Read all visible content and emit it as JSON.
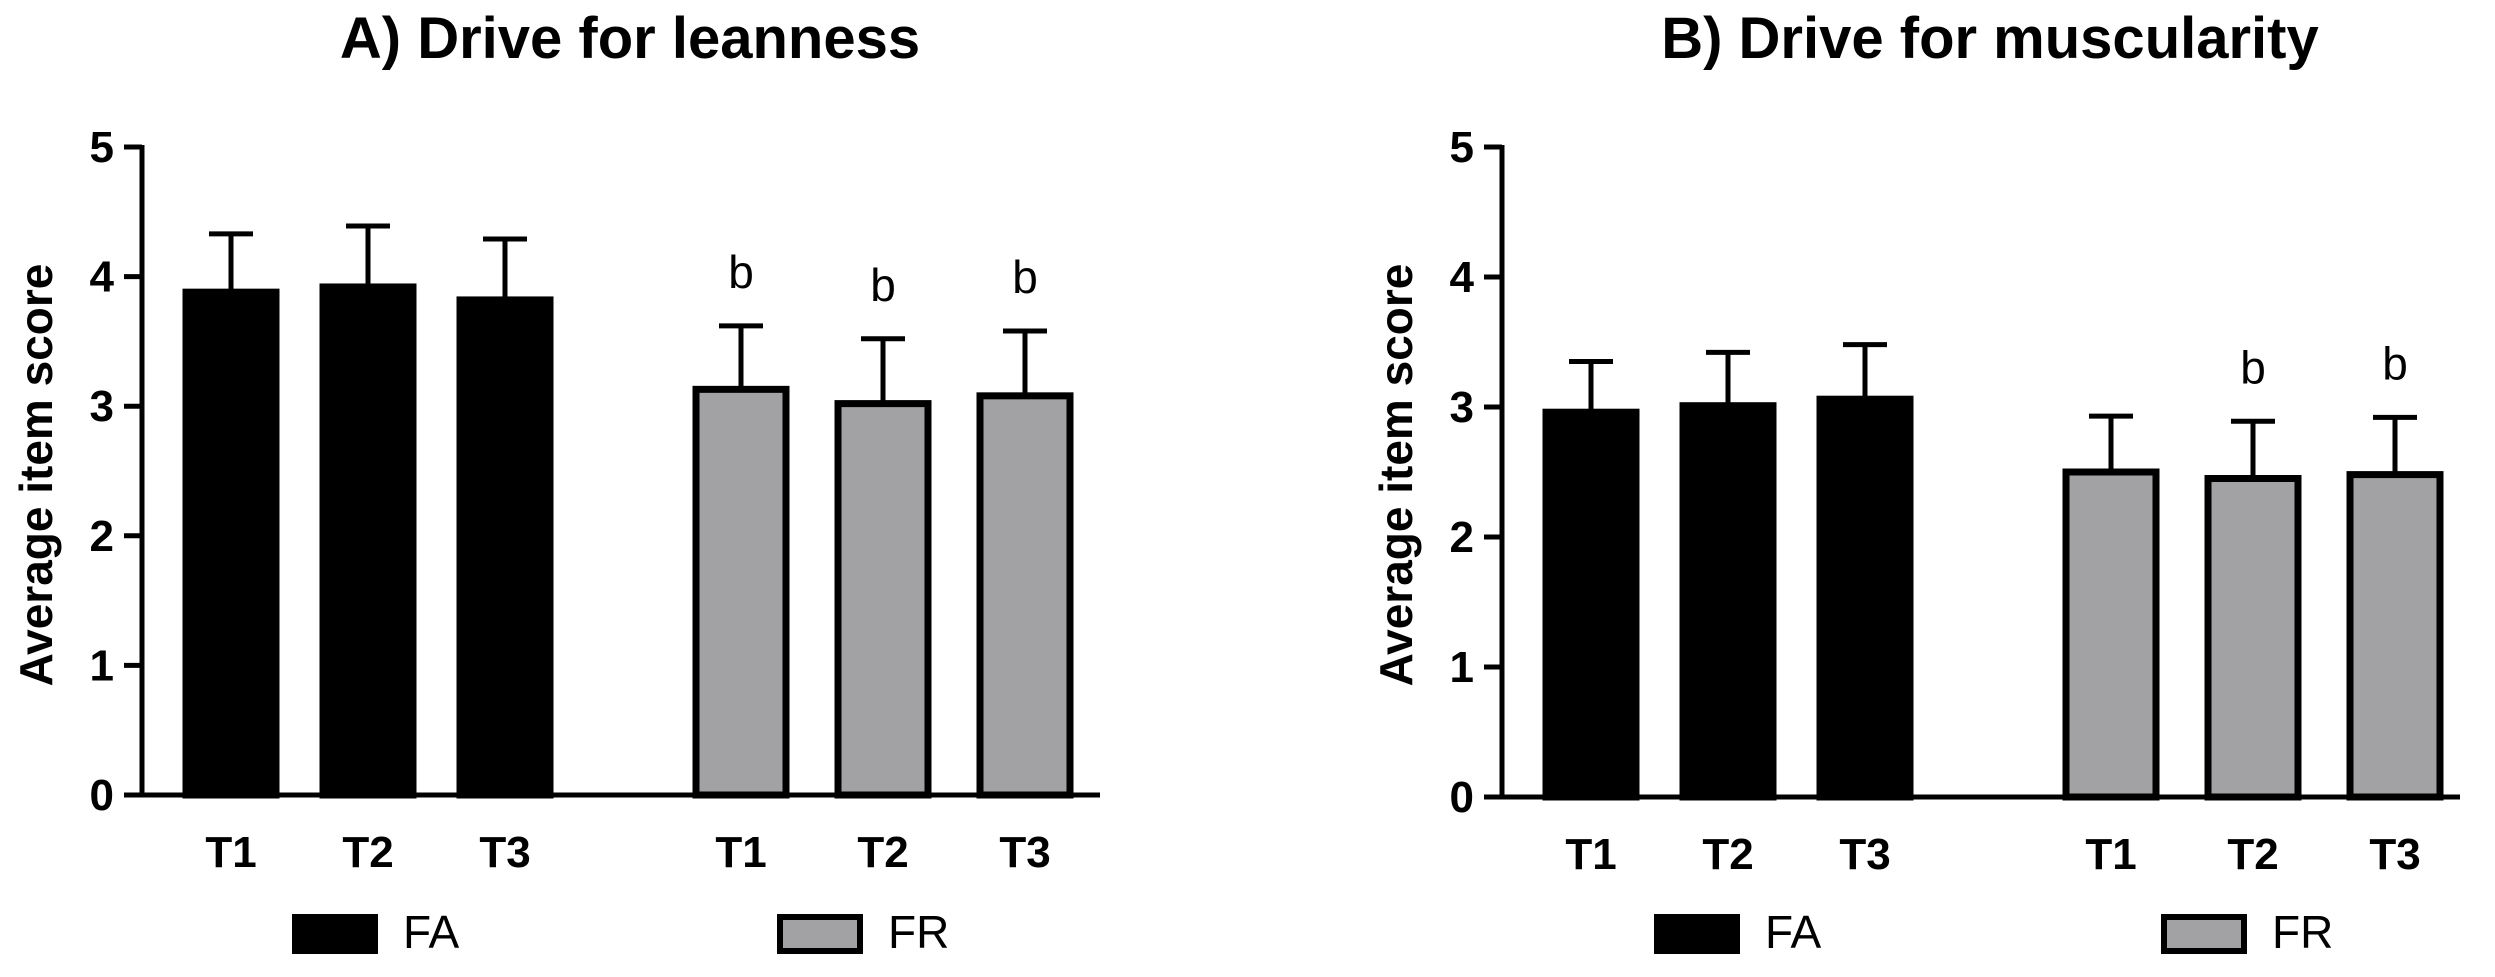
{
  "chart_data": [
    {
      "type": "bar",
      "title": "A) Drive for leanness",
      "xlabel": "",
      "ylabel": "Average item score",
      "ylim": [
        0,
        5
      ],
      "yticks": [
        "0",
        "1",
        "2",
        "3",
        "4",
        "5"
      ],
      "categories": [
        "T1",
        "T2",
        "T3"
      ],
      "series": [
        {
          "name": "FA",
          "color": "#000000",
          "values": [
            3.88,
            3.92,
            3.82
          ],
          "errors": [
            0.45,
            0.47,
            0.47
          ],
          "annotations": [
            "",
            "",
            ""
          ]
        },
        {
          "name": "FR",
          "color": "#a2a2a5",
          "values": [
            3.13,
            3.02,
            3.08
          ],
          "errors": [
            0.49,
            0.5,
            0.5
          ],
          "annotations": [
            "b",
            "b",
            "b"
          ]
        }
      ]
    },
    {
      "type": "bar",
      "title": "B) Drive for muscularity",
      "xlabel": "",
      "ylabel": "Average item score",
      "ylim": [
        0,
        5
      ],
      "yticks": [
        "0",
        "1",
        "2",
        "3",
        "4",
        "5"
      ],
      "categories": [
        "T1",
        "T2",
        "T3"
      ],
      "series": [
        {
          "name": "FA",
          "color": "#000000",
          "values": [
            2.96,
            3.01,
            3.06
          ],
          "errors": [
            0.39,
            0.41,
            0.42
          ],
          "annotations": [
            "",
            "",
            ""
          ]
        },
        {
          "name": "FR",
          "color": "#a2a2a5",
          "values": [
            2.5,
            2.45,
            2.48
          ],
          "errors": [
            0.43,
            0.44,
            0.44
          ],
          "annotations": [
            "",
            "b",
            "b"
          ]
        }
      ]
    }
  ]
}
